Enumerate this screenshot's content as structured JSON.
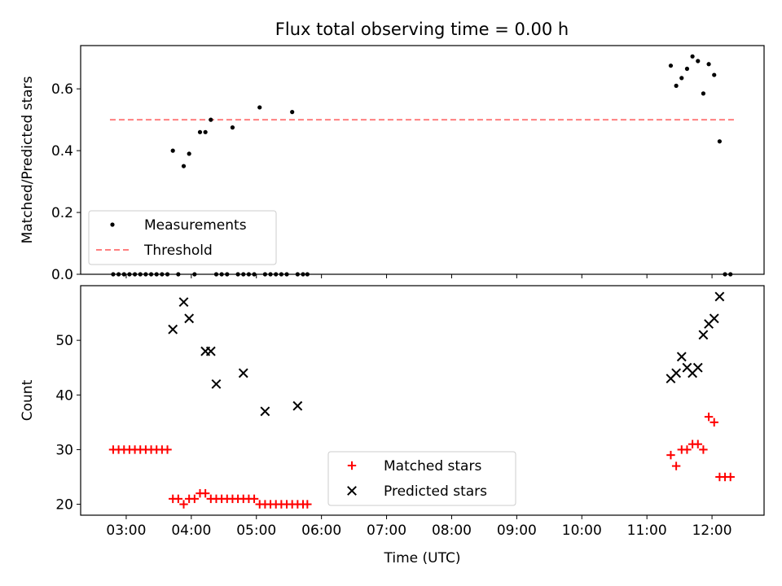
{
  "figure": {
    "title": "Flux total observing time = 0.00 h"
  },
  "chart_data": [
    {
      "type": "scatter",
      "panel": "top",
      "title": "Flux total observing time = 0.00 h",
      "xlabel": "",
      "ylabel": "Matched/Predicted stars",
      "xlim": [
        "02:18",
        "12:48"
      ],
      "ylim": [
        0,
        0.74
      ],
      "y_ticks": [
        0.0,
        0.2,
        0.4,
        0.6
      ],
      "y_tick_labels": [
        "0.0",
        "0.2",
        "0.4",
        "0.6"
      ],
      "legend": {
        "position": "lower-left",
        "entries": [
          "Measurements",
          "Threshold"
        ]
      },
      "threshold": {
        "name": "Threshold",
        "value": 0.5,
        "x_start": "02:45",
        "x_end": "12:22",
        "color": "#ff7f7f"
      },
      "series": [
        {
          "name": "Measurements",
          "marker": "dot",
          "color": "#000000",
          "x": [
            "02:48",
            "02:53",
            "02:58",
            "03:03",
            "03:08",
            "03:13",
            "03:18",
            "03:23",
            "03:28",
            "03:33",
            "03:38",
            "03:43",
            "03:48",
            "03:53",
            "03:58",
            "04:03",
            "04:08",
            "04:13",
            "04:18",
            "04:23",
            "04:28",
            "04:33",
            "04:38",
            "04:43",
            "04:48",
            "04:53",
            "04:58",
            "05:03",
            "05:08",
            "05:13",
            "05:18",
            "05:23",
            "05:28",
            "05:33",
            "05:38",
            "05:43",
            "05:47",
            "11:22",
            "11:27",
            "11:32",
            "11:37",
            "11:42",
            "11:47",
            "11:52",
            "11:57",
            "12:02",
            "12:07",
            "12:12",
            "12:17"
          ],
          "y": [
            0,
            0,
            0,
            0,
            0,
            0,
            0,
            0,
            0,
            0,
            0,
            0.4,
            0,
            0.35,
            0.39,
            0,
            0.46,
            0.46,
            0.5,
            0,
            0,
            0,
            0.475,
            0,
            0,
            0,
            0,
            0.54,
            0,
            0,
            0,
            0,
            0,
            0.525,
            0,
            0,
            0,
            0.675,
            0.61,
            0.635,
            0.665,
            0.705,
            0.69,
            0.585,
            0.68,
            0.645,
            0.43,
            0,
            0
          ]
        }
      ]
    },
    {
      "type": "scatter",
      "panel": "bottom",
      "xlabel": "Time (UTC)",
      "ylabel": "Count",
      "xlim": [
        "02:18",
        "12:48"
      ],
      "ylim": [
        18,
        60
      ],
      "x_tick_labels": [
        "03:00",
        "04:00",
        "05:00",
        "06:00",
        "07:00",
        "08:00",
        "09:00",
        "10:00",
        "11:00",
        "12:00"
      ],
      "y_ticks": [
        20,
        30,
        40,
        50
      ],
      "y_tick_labels": [
        "20",
        "30",
        "40",
        "50"
      ],
      "legend": {
        "position": "lower-center",
        "entries": [
          "Matched stars",
          "Predicted stars"
        ]
      },
      "series": [
        {
          "name": "Matched stars",
          "marker": "plus",
          "color": "#ff0000",
          "x": [
            "02:48",
            "02:53",
            "02:58",
            "03:03",
            "03:08",
            "03:13",
            "03:18",
            "03:23",
            "03:28",
            "03:33",
            "03:38",
            "03:43",
            "03:48",
            "03:53",
            "03:58",
            "04:03",
            "04:08",
            "04:13",
            "04:18",
            "04:23",
            "04:28",
            "04:33",
            "04:38",
            "04:43",
            "04:48",
            "04:53",
            "04:58",
            "05:03",
            "05:08",
            "05:13",
            "05:18",
            "05:23",
            "05:28",
            "05:33",
            "05:38",
            "05:43",
            "05:47",
            "11:22",
            "11:27",
            "11:32",
            "11:37",
            "11:42",
            "11:47",
            "11:52",
            "11:57",
            "12:02",
            "12:07",
            "12:12",
            "12:17"
          ],
          "y": [
            30,
            30,
            30,
            30,
            30,
            30,
            30,
            30,
            30,
            30,
            30,
            21,
            21,
            20,
            21,
            21,
            22,
            22,
            21,
            21,
            21,
            21,
            21,
            21,
            21,
            21,
            21,
            20,
            20,
            20,
            20,
            20,
            20,
            20,
            20,
            20,
            20,
            29,
            27,
            30,
            30,
            31,
            31,
            30,
            36,
            35,
            25,
            25,
            25
          ]
        },
        {
          "name": "Predicted stars",
          "marker": "x",
          "color": "#000000",
          "x": [
            "03:43",
            "03:53",
            "03:58",
            "04:13",
            "04:18",
            "04:23",
            "04:48",
            "05:08",
            "05:38",
            "11:22",
            "11:27",
            "11:32",
            "11:37",
            "11:42",
            "11:47",
            "11:52",
            "11:57",
            "12:02",
            "12:07"
          ],
          "y": [
            52,
            57,
            54,
            48,
            48,
            42,
            44,
            37,
            38,
            43,
            44,
            47,
            45,
            44,
            45,
            51,
            53,
            54,
            58
          ]
        }
      ]
    }
  ]
}
